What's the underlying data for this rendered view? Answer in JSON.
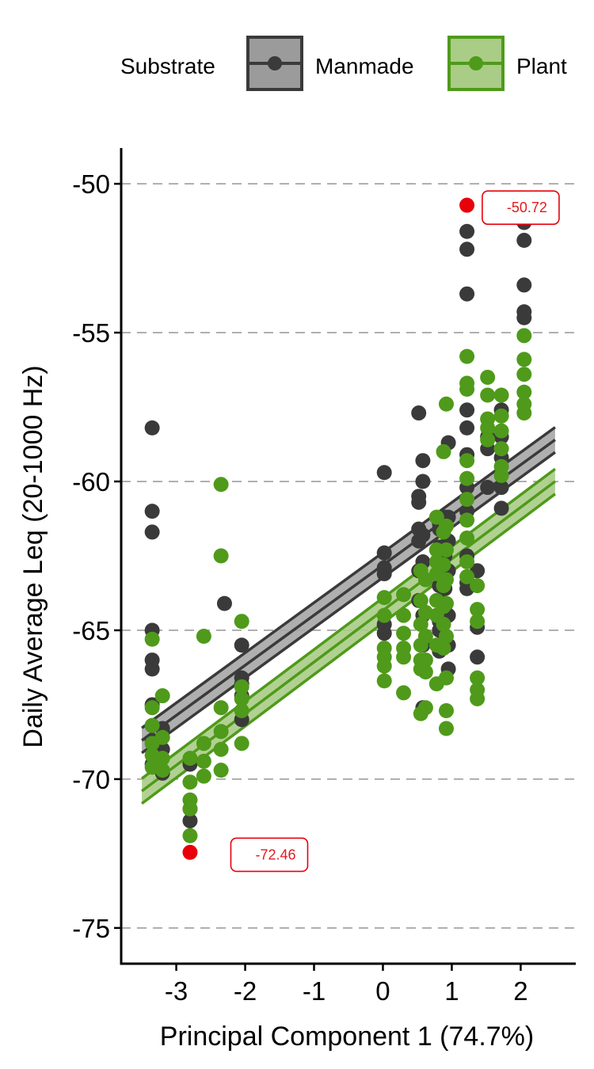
{
  "chart_data": {
    "type": "scatter",
    "xlabel": "Principal Component 1 (74.7%)",
    "ylabel": "Daily Average Leq (20-1000 Hz)",
    "xlim": [
      -3.8,
      2.8
    ],
    "ylim": [
      -76.2,
      -48.8
    ],
    "x_ticks": [
      -3,
      -2,
      -1,
      0,
      1,
      2
    ],
    "y_ticks": [
      -50,
      -55,
      -60,
      -65,
      -70,
      -75
    ],
    "grid": "horizontal dashed",
    "legend": {
      "title": "Substrate",
      "position": "top",
      "entries": [
        "Manmade",
        "Plant"
      ]
    },
    "colors": {
      "Manmade": "#3a3a3a",
      "Plant": "#4f9a1a",
      "highlight": "#e8000b"
    },
    "series": [
      {
        "name": "Manmade",
        "fit": {
          "x": [
            -3.5,
            2.5
          ],
          "y": [
            -68.7,
            -58.6
          ],
          "ci_halfwidth": 0.42
        },
        "points": [
          [
            -3.35,
            -58.2
          ],
          [
            -3.35,
            -61.0
          ],
          [
            -3.35,
            -61.7
          ],
          [
            -3.35,
            -65.0
          ],
          [
            -3.35,
            -66.0
          ],
          [
            -3.35,
            -66.3
          ],
          [
            -3.35,
            -67.5
          ],
          [
            -3.35,
            -68.2
          ],
          [
            -3.35,
            -68.7
          ],
          [
            -3.35,
            -69.5
          ],
          [
            -3.2,
            -68.3
          ],
          [
            -3.2,
            -69.0
          ],
          [
            -3.2,
            -69.8
          ],
          [
            -2.8,
            -69.5
          ],
          [
            -2.8,
            -71.0
          ],
          [
            -2.8,
            -71.4
          ],
          [
            -2.3,
            -64.1
          ],
          [
            -2.05,
            -65.5
          ],
          [
            -2.05,
            -66.6
          ],
          [
            -2.05,
            -66.8
          ],
          [
            -2.05,
            -67.2
          ],
          [
            -2.05,
            -68.0
          ],
          [
            0.02,
            -59.7
          ],
          [
            0.02,
            -62.4
          ],
          [
            0.02,
            -62.9
          ],
          [
            0.02,
            -63.1
          ],
          [
            0.02,
            -64.8
          ],
          [
            0.02,
            -65.1
          ],
          [
            0.52,
            -57.7
          ],
          [
            0.52,
            -60.5
          ],
          [
            0.52,
            -60.7
          ],
          [
            0.52,
            -61.6
          ],
          [
            0.52,
            -62.0
          ],
          [
            0.52,
            -63.0
          ],
          [
            0.52,
            -64.0
          ],
          [
            0.58,
            -59.3
          ],
          [
            0.58,
            -60.0
          ],
          [
            0.58,
            -61.8
          ],
          [
            0.58,
            -62.7
          ],
          [
            0.58,
            -64.5
          ],
          [
            0.58,
            -65.5
          ],
          [
            0.58,
            -67.6
          ],
          [
            0.82,
            -61.4
          ],
          [
            0.82,
            -61.6
          ],
          [
            0.82,
            -62.2
          ],
          [
            0.82,
            -63.0
          ],
          [
            0.82,
            -63.5
          ],
          [
            0.82,
            -64.0
          ],
          [
            0.82,
            -64.7
          ],
          [
            0.82,
            -65.0
          ],
          [
            0.82,
            -65.7
          ],
          [
            0.9,
            -61.2
          ],
          [
            0.9,
            -62.5
          ],
          [
            0.9,
            -63.6
          ],
          [
            0.9,
            -64.2
          ],
          [
            0.9,
            -65.2
          ],
          [
            0.95,
            -58.7
          ],
          [
            0.95,
            -61.2
          ],
          [
            0.95,
            -62.0
          ],
          [
            0.95,
            -63.0
          ],
          [
            0.95,
            -64.5
          ],
          [
            0.95,
            -65.5
          ],
          [
            0.95,
            -66.3
          ],
          [
            1.22,
            -51.6
          ],
          [
            1.22,
            -52.2
          ],
          [
            1.22,
            -53.7
          ],
          [
            1.22,
            -57.6
          ],
          [
            1.22,
            -58.2
          ],
          [
            1.22,
            -59.1
          ],
          [
            1.22,
            -60.2
          ],
          [
            1.22,
            -61.0
          ],
          [
            1.22,
            -62.5
          ],
          [
            1.22,
            -63.4
          ],
          [
            1.22,
            -63.6
          ],
          [
            1.37,
            -63.0
          ],
          [
            1.37,
            -64.9
          ],
          [
            1.37,
            -65.9
          ],
          [
            1.52,
            -58.5
          ],
          [
            1.52,
            -58.9
          ],
          [
            1.52,
            -60.2
          ],
          [
            1.72,
            -57.6
          ],
          [
            1.72,
            -58.5
          ],
          [
            1.72,
            -59.2
          ],
          [
            1.72,
            -60.2
          ],
          [
            1.72,
            -60.9
          ],
          [
            2.05,
            -51.3
          ],
          [
            2.05,
            -51.9
          ],
          [
            2.05,
            -53.4
          ],
          [
            2.05,
            -54.3
          ],
          [
            2.05,
            -54.5
          ]
        ]
      },
      {
        "name": "Plant",
        "fit": {
          "x": [
            -3.5,
            2.5
          ],
          "y": [
            -70.4,
            -60.0
          ],
          "ci_halfwidth": 0.42
        },
        "points": [
          [
            -3.35,
            -65.3
          ],
          [
            -3.35,
            -67.6
          ],
          [
            -3.35,
            -68.2
          ],
          [
            -3.35,
            -68.8
          ],
          [
            -3.35,
            -69.2
          ],
          [
            -3.35,
            -69.6
          ],
          [
            -3.2,
            -67.2
          ],
          [
            -3.2,
            -68.6
          ],
          [
            -3.2,
            -69.3
          ],
          [
            -3.2,
            -69.7
          ],
          [
            -2.8,
            -69.3
          ],
          [
            -2.8,
            -70.1
          ],
          [
            -2.8,
            -70.7
          ],
          [
            -2.8,
            -71.0
          ],
          [
            -2.8,
            -71.9
          ],
          [
            -2.6,
            -65.2
          ],
          [
            -2.6,
            -68.8
          ],
          [
            -2.6,
            -69.4
          ],
          [
            -2.6,
            -69.9
          ],
          [
            -2.35,
            -60.1
          ],
          [
            -2.35,
            -62.5
          ],
          [
            -2.35,
            -67.6
          ],
          [
            -2.35,
            -68.4
          ],
          [
            -2.35,
            -69.0
          ],
          [
            -2.35,
            -69.7
          ],
          [
            -2.05,
            -64.7
          ],
          [
            -2.05,
            -66.9
          ],
          [
            -2.05,
            -67.3
          ],
          [
            -2.05,
            -67.7
          ],
          [
            -2.05,
            -68.8
          ],
          [
            0.02,
            -63.9
          ],
          [
            0.02,
            -64.5
          ],
          [
            0.02,
            -65.6
          ],
          [
            0.02,
            -65.9
          ],
          [
            0.02,
            -66.2
          ],
          [
            0.02,
            -66.7
          ],
          [
            0.3,
            -63.8
          ],
          [
            0.3,
            -64.5
          ],
          [
            0.3,
            -65.1
          ],
          [
            0.3,
            -65.6
          ],
          [
            0.3,
            -65.9
          ],
          [
            0.3,
            -67.1
          ],
          [
            0.55,
            -63.0
          ],
          [
            0.55,
            -64.0
          ],
          [
            0.55,
            -64.8
          ],
          [
            0.55,
            -65.5
          ],
          [
            0.55,
            -66.0
          ],
          [
            0.55,
            -66.3
          ],
          [
            0.55,
            -67.8
          ],
          [
            0.62,
            -63.3
          ],
          [
            0.62,
            -64.4
          ],
          [
            0.62,
            -65.2
          ],
          [
            0.62,
            -66.0
          ],
          [
            0.62,
            -66.4
          ],
          [
            0.62,
            -67.6
          ],
          [
            0.78,
            -61.2
          ],
          [
            0.78,
            -62.3
          ],
          [
            0.78,
            -62.7
          ],
          [
            0.78,
            -63.1
          ],
          [
            0.78,
            -64.0
          ],
          [
            0.78,
            -64.5
          ],
          [
            0.78,
            -65.5
          ],
          [
            0.78,
            -66.8
          ],
          [
            0.88,
            -59.0
          ],
          [
            0.88,
            -61.7
          ],
          [
            0.88,
            -62.8
          ],
          [
            0.88,
            -63.5
          ],
          [
            0.88,
            -64.2
          ],
          [
            0.88,
            -64.8
          ],
          [
            0.88,
            -65.6
          ],
          [
            0.92,
            -57.4
          ],
          [
            0.92,
            -61.5
          ],
          [
            0.92,
            -62.3
          ],
          [
            0.92,
            -63.3
          ],
          [
            0.92,
            -64.1
          ],
          [
            0.92,
            -65.2
          ],
          [
            0.92,
            -66.6
          ],
          [
            0.92,
            -67.7
          ],
          [
            0.92,
            -68.3
          ],
          [
            1.22,
            -55.8
          ],
          [
            1.22,
            -56.7
          ],
          [
            1.22,
            -56.9
          ],
          [
            1.22,
            -59.3
          ],
          [
            1.22,
            -59.9
          ],
          [
            1.22,
            -60.6
          ],
          [
            1.22,
            -61.3
          ],
          [
            1.22,
            -61.9
          ],
          [
            1.22,
            -62.7
          ],
          [
            1.22,
            -63.2
          ],
          [
            1.37,
            -63.5
          ],
          [
            1.37,
            -64.3
          ],
          [
            1.37,
            -64.7
          ],
          [
            1.37,
            -66.6
          ],
          [
            1.37,
            -67.0
          ],
          [
            1.37,
            -67.3
          ],
          [
            1.52,
            -56.5
          ],
          [
            1.52,
            -57.1
          ],
          [
            1.52,
            -57.9
          ],
          [
            1.52,
            -58.2
          ],
          [
            1.52,
            -58.6
          ],
          [
            1.72,
            -57.1
          ],
          [
            1.72,
            -57.8
          ],
          [
            1.72,
            -58.3
          ],
          [
            1.72,
            -58.9
          ],
          [
            1.72,
            -59.5
          ],
          [
            1.72,
            -59.8
          ],
          [
            2.05,
            -55.1
          ],
          [
            2.05,
            -55.9
          ],
          [
            2.05,
            -56.4
          ],
          [
            2.05,
            -57.0
          ],
          [
            2.05,
            -57.4
          ],
          [
            2.05,
            -57.7
          ]
        ]
      }
    ],
    "highlights": [
      {
        "x": 1.22,
        "y": -50.72,
        "label": "-50.72",
        "label_x": 2.0
      },
      {
        "x": -2.8,
        "y": -72.46,
        "label": "-72.46",
        "label_x": -1.65
      }
    ]
  }
}
